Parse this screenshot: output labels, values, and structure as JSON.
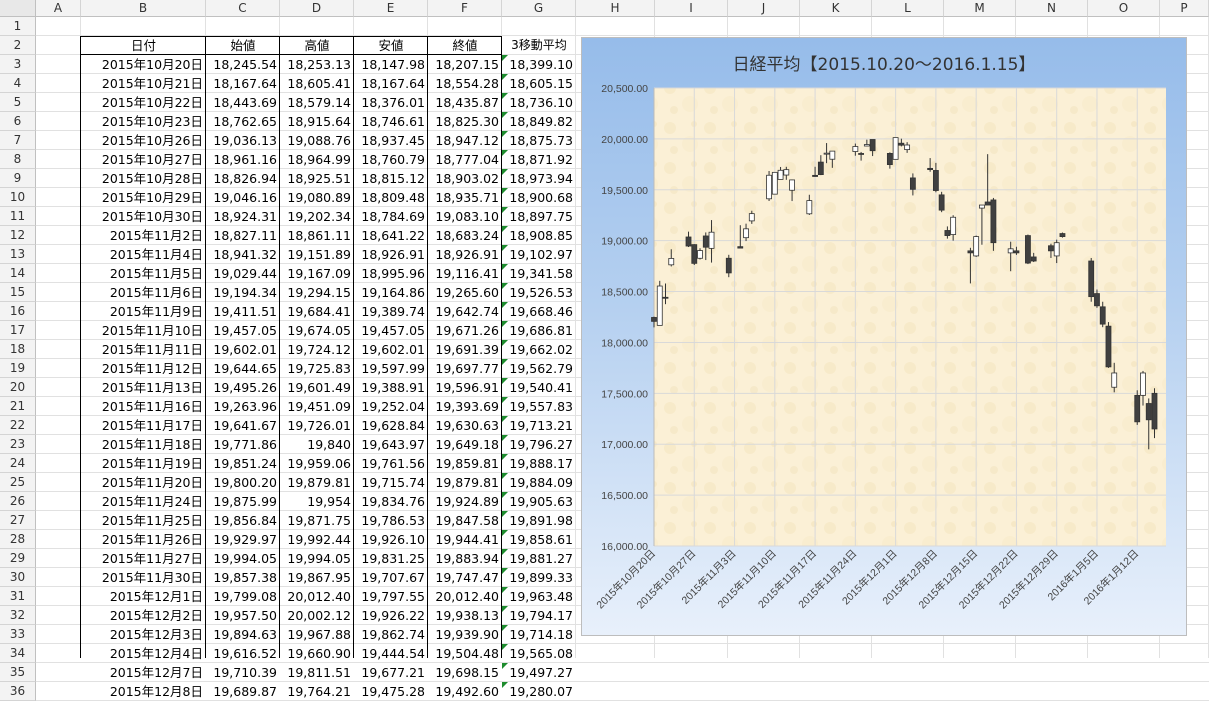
{
  "columns": [
    "A",
    "B",
    "C",
    "D",
    "E",
    "F",
    "G",
    "H",
    "I",
    "J",
    "K",
    "L",
    "M",
    "N",
    "O",
    "P"
  ],
  "rows": [
    "1",
    "2",
    "3",
    "4",
    "5",
    "6",
    "7",
    "8",
    "9",
    "10",
    "11",
    "12",
    "13",
    "14",
    "15",
    "16",
    "17",
    "18",
    "19",
    "20",
    "21",
    "22",
    "23",
    "24",
    "25",
    "26",
    "27",
    "28",
    "29",
    "30",
    "31",
    "32",
    "33",
    "34",
    "35",
    "36"
  ],
  "table": {
    "headers": [
      "日付",
      "始値",
      "高値",
      "安値",
      "終値",
      "3移動平均"
    ],
    "rows": [
      [
        "2015年10月20日",
        "18,245.54",
        "18,253.13",
        "18,147.98",
        "18,207.15",
        "18,399.10"
      ],
      [
        "2015年10月21日",
        "18,167.64",
        "18,605.41",
        "18,167.64",
        "18,554.28",
        "18,605.15"
      ],
      [
        "2015年10月22日",
        "18,443.69",
        "18,579.14",
        "18,376.01",
        "18,435.87",
        "18,736.10"
      ],
      [
        "2015年10月23日",
        "18,762.65",
        "18,915.64",
        "18,746.61",
        "18,825.30",
        "18,849.82"
      ],
      [
        "2015年10月26日",
        "19,036.13",
        "19,088.76",
        "18,937.45",
        "18,947.12",
        "18,875.73"
      ],
      [
        "2015年10月27日",
        "18,961.16",
        "18,964.99",
        "18,760.79",
        "18,777.04",
        "18,871.92"
      ],
      [
        "2015年10月28日",
        "18,826.94",
        "18,925.51",
        "18,815.12",
        "18,903.02",
        "18,973.94"
      ],
      [
        "2015年10月29日",
        "19,046.16",
        "19,080.89",
        "18,809.48",
        "18,935.71",
        "18,900.68"
      ],
      [
        "2015年10月30日",
        "18,924.31",
        "19,202.34",
        "18,784.69",
        "19,083.10",
        "18,897.75"
      ],
      [
        "2015年11月2日",
        "18,827.11",
        "18,861.11",
        "18,641.22",
        "18,683.24",
        "18,908.85"
      ],
      [
        "2015年11月4日",
        "18,941.32",
        "19,151.89",
        "18,926.91",
        "18,926.91",
        "19,102.97"
      ],
      [
        "2015年11月5日",
        "19,029.44",
        "19,167.09",
        "18,995.96",
        "19,116.41",
        "19,341.58"
      ],
      [
        "2015年11月6日",
        "19,194.34",
        "19,294.15",
        "19,164.86",
        "19,265.60",
        "19,526.53"
      ],
      [
        "2015年11月9日",
        "19,411.51",
        "19,684.41",
        "19,389.74",
        "19,642.74",
        "19,668.46"
      ],
      [
        "2015年11月10日",
        "19,457.05",
        "19,674.05",
        "19,457.05",
        "19,671.26",
        "19,686.81"
      ],
      [
        "2015年11月11日",
        "19,602.01",
        "19,724.12",
        "19,602.01",
        "19,691.39",
        "19,662.02"
      ],
      [
        "2015年11月12日",
        "19,644.65",
        "19,725.83",
        "19,597.99",
        "19,697.77",
        "19,562.79"
      ],
      [
        "2015年11月13日",
        "19,495.26",
        "19,601.49",
        "19,388.91",
        "19,596.91",
        "19,540.41"
      ],
      [
        "2015年11月16日",
        "19,263.96",
        "19,451.09",
        "19,252.04",
        "19,393.69",
        "19,557.83"
      ],
      [
        "2015年11月17日",
        "19,641.67",
        "19,726.01",
        "19,628.84",
        "19,630.63",
        "19,713.21"
      ],
      [
        "2015年11月18日",
        "19,771.86",
        "19,840",
        "19,643.97",
        "19,649.18",
        "19,796.27"
      ],
      [
        "2015年11月19日",
        "19,851.24",
        "19,959.06",
        "19,761.56",
        "19,859.81",
        "19,888.17"
      ],
      [
        "2015年11月20日",
        "19,800.20",
        "19,879.81",
        "19,715.74",
        "19,879.81",
        "19,884.09"
      ],
      [
        "2015年11月24日",
        "19,875.99",
        "19,954",
        "19,834.76",
        "19,924.89",
        "19,905.63"
      ],
      [
        "2015年11月25日",
        "19,856.84",
        "19,871.75",
        "19,786.53",
        "19,847.58",
        "19,891.98"
      ],
      [
        "2015年11月26日",
        "19,929.97",
        "19,992.44",
        "19,926.10",
        "19,944.41",
        "19,858.61"
      ],
      [
        "2015年11月27日",
        "19,994.05",
        "19,994.05",
        "19,831.25",
        "19,883.94",
        "19,881.27"
      ],
      [
        "2015年11月30日",
        "19,857.38",
        "19,867.95",
        "19,707.67",
        "19,747.47",
        "19,899.33"
      ],
      [
        "2015年12月1日",
        "19,799.08",
        "20,012.40",
        "19,797.55",
        "20,012.40",
        "19,963.48"
      ],
      [
        "2015年12月2日",
        "19,957.50",
        "20,002.12",
        "19,926.22",
        "19,938.13",
        "19,794.17"
      ],
      [
        "2015年12月3日",
        "19,894.63",
        "19,967.88",
        "19,862.74",
        "19,939.90",
        "19,714.18"
      ],
      [
        "2015年12月4日",
        "19,616.52",
        "19,660.90",
        "19,444.54",
        "19,504.48",
        "19,565.08"
      ],
      [
        "2015年12月7日",
        "19,710.39",
        "19,811.51",
        "19,677.21",
        "19,698.15",
        "19,497.27"
      ],
      [
        "2015年12月8日",
        "19,689.87",
        "19,764.21",
        "19,475.28",
        "19,492.60",
        "19,280.07"
      ]
    ]
  },
  "chart": {
    "title": "日経平均【2015.10.20～2016.1.15】",
    "colors": {
      "up": "#ffffff",
      "down": "#404040",
      "plot_bg": "#fbf0d6",
      "grid": "#d9d9d9"
    }
  },
  "chart_data": {
    "type": "candlestick",
    "title": "日経平均【2015.10.20～2016.1.15】",
    "ylim": [
      16000,
      20500
    ],
    "yticks": [
      "16,000.00",
      "16,500.00",
      "17,000.00",
      "17,500.00",
      "18,000.00",
      "18,500.00",
      "19,000.00",
      "19,500.00",
      "20,000.00",
      "20,500.00"
    ],
    "xticks": [
      "2015年10月20日",
      "2015年10月27日",
      "2015年11月3日",
      "2015年11月10日",
      "2015年11月17日",
      "2015年11月24日",
      "2015年12月1日",
      "2015年12月8日",
      "2015年12月15日",
      "2015年12月22日",
      "2015年12月29日",
      "2016年1月5日",
      "2016年1月12日"
    ],
    "series": [
      {
        "date": "2015-10-20",
        "open": 18245.54,
        "high": 18253.13,
        "low": 18147.98,
        "close": 18207.15
      },
      {
        "date": "2015-10-21",
        "open": 18167.64,
        "high": 18605.41,
        "low": 18167.64,
        "close": 18554.28
      },
      {
        "date": "2015-10-22",
        "open": 18443.69,
        "high": 18579.14,
        "low": 18376.01,
        "close": 18435.87
      },
      {
        "date": "2015-10-23",
        "open": 18762.65,
        "high": 18915.64,
        "low": 18746.61,
        "close": 18825.3
      },
      {
        "date": "2015-10-26",
        "open": 19036.13,
        "high": 19088.76,
        "low": 18937.45,
        "close": 18947.12
      },
      {
        "date": "2015-10-27",
        "open": 18961.16,
        "high": 18964.99,
        "low": 18760.79,
        "close": 18777.04
      },
      {
        "date": "2015-10-28",
        "open": 18826.94,
        "high": 18925.51,
        "low": 18815.12,
        "close": 18903.02
      },
      {
        "date": "2015-10-29",
        "open": 19046.16,
        "high": 19080.89,
        "low": 18809.48,
        "close": 18935.71
      },
      {
        "date": "2015-10-30",
        "open": 18924.31,
        "high": 19202.34,
        "low": 18784.69,
        "close": 19083.1
      },
      {
        "date": "2015-11-02",
        "open": 18827.11,
        "high": 18861.11,
        "low": 18641.22,
        "close": 18683.24
      },
      {
        "date": "2015-11-04",
        "open": 18941.32,
        "high": 19151.89,
        "low": 18926.91,
        "close": 18926.91
      },
      {
        "date": "2015-11-05",
        "open": 19029.44,
        "high": 19167.09,
        "low": 18995.96,
        "close": 19116.41
      },
      {
        "date": "2015-11-06",
        "open": 19194.34,
        "high": 19294.15,
        "low": 19164.86,
        "close": 19265.6
      },
      {
        "date": "2015-11-09",
        "open": 19411.51,
        "high": 19684.41,
        "low": 19389.74,
        "close": 19642.74
      },
      {
        "date": "2015-11-10",
        "open": 19457.05,
        "high": 19674.05,
        "low": 19457.05,
        "close": 19671.26
      },
      {
        "date": "2015-11-11",
        "open": 19602.01,
        "high": 19724.12,
        "low": 19602.01,
        "close": 19691.39
      },
      {
        "date": "2015-11-12",
        "open": 19644.65,
        "high": 19725.83,
        "low": 19597.99,
        "close": 19697.77
      },
      {
        "date": "2015-11-13",
        "open": 19495.26,
        "high": 19601.49,
        "low": 19388.91,
        "close": 19596.91
      },
      {
        "date": "2015-11-16",
        "open": 19263.96,
        "high": 19451.09,
        "low": 19252.04,
        "close": 19393.69
      },
      {
        "date": "2015-11-17",
        "open": 19641.67,
        "high": 19726.01,
        "low": 19628.84,
        "close": 19630.63
      },
      {
        "date": "2015-11-18",
        "open": 19771.86,
        "high": 19840,
        "low": 19643.97,
        "close": 19649.18
      },
      {
        "date": "2015-11-19",
        "open": 19851.24,
        "high": 19959.06,
        "low": 19761.56,
        "close": 19859.81
      },
      {
        "date": "2015-11-20",
        "open": 19800.2,
        "high": 19879.81,
        "low": 19715.74,
        "close": 19879.81
      },
      {
        "date": "2015-11-24",
        "open": 19875.99,
        "high": 19954,
        "low": 19834.76,
        "close": 19924.89
      },
      {
        "date": "2015-11-25",
        "open": 19856.84,
        "high": 19871.75,
        "low": 19786.53,
        "close": 19847.58
      },
      {
        "date": "2015-11-26",
        "open": 19929.97,
        "high": 19992.44,
        "low": 19926.1,
        "close": 19944.41
      },
      {
        "date": "2015-11-27",
        "open": 19994.05,
        "high": 19994.05,
        "low": 19831.25,
        "close": 19883.94
      },
      {
        "date": "2015-11-30",
        "open": 19857.38,
        "high": 19867.95,
        "low": 19707.67,
        "close": 19747.47
      },
      {
        "date": "2015-12-01",
        "open": 19799.08,
        "high": 20012.4,
        "low": 19797.55,
        "close": 20012.4
      },
      {
        "date": "2015-12-02",
        "open": 19957.5,
        "high": 20002.12,
        "low": 19926.22,
        "close": 19938.13
      },
      {
        "date": "2015-12-03",
        "open": 19894.63,
        "high": 19967.88,
        "low": 19862.74,
        "close": 19939.9
      },
      {
        "date": "2015-12-04",
        "open": 19616.52,
        "high": 19660.9,
        "low": 19444.54,
        "close": 19504.48
      },
      {
        "date": "2015-12-07",
        "open": 19710.39,
        "high": 19811.51,
        "low": 19677.21,
        "close": 19698.15
      },
      {
        "date": "2015-12-08",
        "open": 19689.87,
        "high": 19764.21,
        "low": 19475.28,
        "close": 19492.6
      },
      {
        "date": "2015-12-09",
        "open": 19450,
        "high": 19480,
        "low": 19280,
        "close": 19300
      },
      {
        "date": "2015-12-10",
        "open": 19100,
        "high": 19140,
        "low": 19020,
        "close": 19050
      },
      {
        "date": "2015-12-11",
        "open": 19060,
        "high": 19250,
        "low": 19000,
        "close": 19230
      },
      {
        "date": "2015-12-14",
        "open": 18900,
        "high": 18930,
        "low": 18580,
        "close": 18880
      },
      {
        "date": "2015-12-15",
        "open": 18850,
        "high": 19050,
        "low": 18840,
        "close": 19040
      },
      {
        "date": "2015-12-16",
        "open": 19320,
        "high": 19350,
        "low": 18960,
        "close": 19350
      },
      {
        "date": "2015-12-17",
        "open": 19380,
        "high": 19850,
        "low": 19350,
        "close": 19350
      },
      {
        "date": "2015-12-18",
        "open": 19400,
        "high": 19420,
        "low": 18900,
        "close": 18980
      },
      {
        "date": "2015-12-21",
        "open": 18880,
        "high": 18990,
        "low": 18700,
        "close": 18920
      },
      {
        "date": "2015-12-22",
        "open": 18900,
        "high": 18940,
        "low": 18860,
        "close": 18880
      },
      {
        "date": "2015-12-24",
        "open": 19050,
        "high": 19060,
        "low": 18770,
        "close": 18780
      },
      {
        "date": "2015-12-25",
        "open": 18840,
        "high": 18880,
        "low": 18790,
        "close": 18800
      },
      {
        "date": "2015-12-28",
        "open": 18950,
        "high": 18970,
        "low": 18830,
        "close": 18900
      },
      {
        "date": "2015-12-29",
        "open": 18850,
        "high": 19010,
        "low": 18780,
        "close": 18980
      },
      {
        "date": "2015-12-30",
        "open": 19070,
        "high": 19080,
        "low": 19030,
        "close": 19040
      },
      {
        "date": "2016-01-04",
        "open": 18800,
        "high": 18830,
        "low": 18400,
        "close": 18450
      },
      {
        "date": "2016-01-05",
        "open": 18480,
        "high": 18520,
        "low": 18340,
        "close": 18360
      },
      {
        "date": "2016-01-06",
        "open": 18350,
        "high": 18400,
        "low": 18150,
        "close": 18180
      },
      {
        "date": "2016-01-07",
        "open": 18160,
        "high": 18200,
        "low": 17750,
        "close": 17760
      },
      {
        "date": "2016-01-08",
        "open": 17560,
        "high": 17800,
        "low": 17510,
        "close": 17700
      },
      {
        "date": "2016-01-12",
        "open": 17480,
        "high": 17530,
        "low": 17190,
        "close": 17220
      },
      {
        "date": "2016-01-13",
        "open": 17480,
        "high": 17720,
        "low": 17380,
        "close": 17700
      },
      {
        "date": "2016-01-14",
        "open": 17400,
        "high": 17450,
        "low": 16950,
        "close": 17240
      },
      {
        "date": "2016-01-15",
        "open": 17500,
        "high": 17550,
        "low": 17060,
        "close": 17150
      }
    ]
  }
}
